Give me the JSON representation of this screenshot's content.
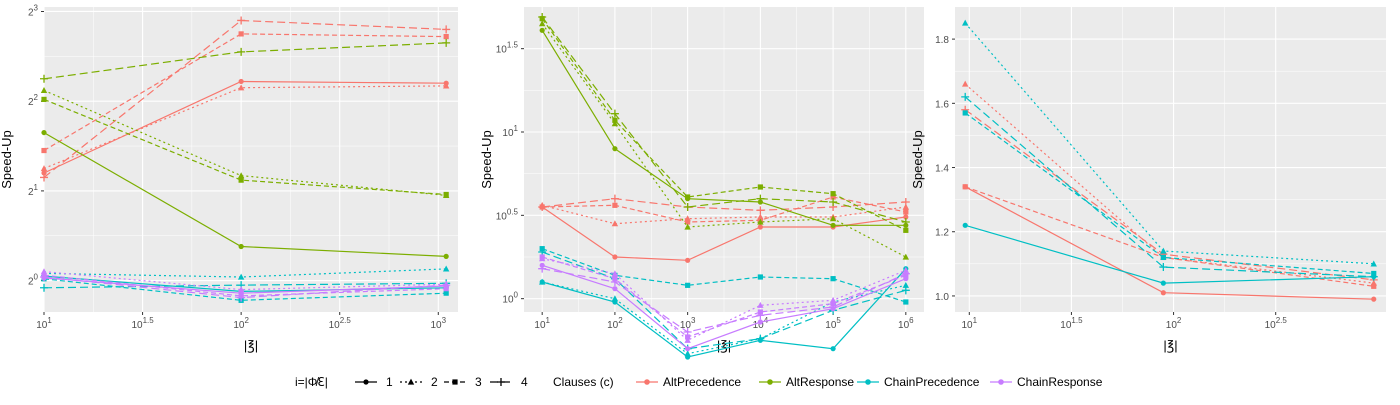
{
  "legend": {
    "shape_title": "i=|Φ̸ℇ|",
    "shape_items": [
      "1",
      "2",
      "3",
      "4"
    ],
    "color_title": "Clauses (c)",
    "color_items": [
      "AltPrecedence",
      "AltResponse",
      "ChainPrecedence",
      "ChainResponse"
    ]
  },
  "colors": {
    "AltPrecedence": "#F8766D",
    "AltResponse": "#7CAE00",
    "ChainPrecedence": "#00BFC4",
    "ChainResponse": "#C77CFF",
    "panel_bg": "#EBEBEB",
    "grid": "#FFFFFF"
  },
  "chart_data": [
    {
      "type": "line",
      "xlabel": "|℥|",
      "ylabel": "Speed-Up",
      "xscale": "log10",
      "yscale": "log2",
      "xlim": [
        1,
        3.1
      ],
      "ylim": [
        -0.35,
        3.05
      ],
      "xticks": [
        1,
        1.5,
        2,
        2.5,
        3
      ],
      "xtick_labels": [
        "10^1",
        "10^1.5",
        "10^2",
        "10^2.5",
        "10^3"
      ],
      "yticks": [
        0,
        1,
        2,
        3
      ],
      "ytick_labels": [
        "2^0",
        "2^1",
        "2^2",
        "2^3"
      ],
      "grid": true,
      "x": [
        1,
        2,
        3.04
      ],
      "series": [
        {
          "clause": "AltPrecedence",
          "i": "1",
          "values": [
            1.2,
            2.22,
            2.2
          ]
        },
        {
          "clause": "AltPrecedence",
          "i": "2",
          "values": [
            1.25,
            2.15,
            2.17
          ]
        },
        {
          "clause": "AltPrecedence",
          "i": "3",
          "values": [
            1.45,
            2.75,
            2.72
          ]
        },
        {
          "clause": "AltPrecedence",
          "i": "4",
          "values": [
            1.15,
            2.9,
            2.8
          ]
        },
        {
          "clause": "AltResponse",
          "i": "1",
          "values": [
            1.65,
            0.38,
            0.27
          ]
        },
        {
          "clause": "AltResponse",
          "i": "2",
          "values": [
            2.12,
            1.17,
            0.95
          ]
        },
        {
          "clause": "AltResponse",
          "i": "3",
          "values": [
            2.02,
            1.12,
            0.96
          ]
        },
        {
          "clause": "AltResponse",
          "i": "4",
          "values": [
            2.25,
            2.55,
            2.65
          ]
        },
        {
          "clause": "ChainPrecedence",
          "i": "1",
          "values": [
            0.05,
            -0.12,
            -0.08
          ]
        },
        {
          "clause": "ChainPrecedence",
          "i": "2",
          "values": [
            0.08,
            0.04,
            0.13
          ]
        },
        {
          "clause": "ChainPrecedence",
          "i": "3",
          "values": [
            0.02,
            -0.22,
            -0.14
          ]
        },
        {
          "clause": "ChainPrecedence",
          "i": "4",
          "values": [
            -0.08,
            -0.05,
            -0.03
          ]
        },
        {
          "clause": "ChainResponse",
          "i": "1",
          "values": [
            0.03,
            -0.14,
            -0.06
          ]
        },
        {
          "clause": "ChainResponse",
          "i": "2",
          "values": [
            0.1,
            -0.1,
            -0.04
          ]
        },
        {
          "clause": "ChainResponse",
          "i": "3",
          "values": [
            0.06,
            -0.17,
            -0.09
          ]
        },
        {
          "clause": "ChainResponse",
          "i": "4",
          "values": [
            0.04,
            -0.19,
            -0.05
          ]
        }
      ]
    },
    {
      "type": "line",
      "xlabel": "|℥|",
      "ylabel": "Speed-Up",
      "xscale": "log10",
      "yscale": "log10",
      "xlim": [
        0.75,
        6.25
      ],
      "ylim": [
        -0.08,
        1.75
      ],
      "xticks": [
        1,
        2,
        3,
        4,
        5,
        6
      ],
      "xtick_labels": [
        "10^1",
        "10^2",
        "10^3",
        "10^4",
        "10^5",
        "10^6"
      ],
      "yticks": [
        0,
        0.5,
        1,
        1.5
      ],
      "ytick_labels": [
        "10^0",
        "10^0.5",
        "10^1",
        "10^1.5"
      ],
      "grid": true,
      "x": [
        1,
        2,
        3,
        4,
        5,
        6
      ],
      "series": [
        {
          "clause": "AltPrecedence",
          "i": "1",
          "values": [
            0.55,
            0.25,
            0.23,
            0.43,
            0.43,
            0.49
          ]
        },
        {
          "clause": "AltPrecedence",
          "i": "2",
          "values": [
            0.56,
            0.45,
            0.48,
            0.49,
            0.49,
            0.55
          ]
        },
        {
          "clause": "AltPrecedence",
          "i": "3",
          "values": [
            0.55,
            0.56,
            0.46,
            0.47,
            0.61,
            0.52
          ]
        },
        {
          "clause": "AltPrecedence",
          "i": "4",
          "values": [
            0.55,
            0.6,
            0.55,
            0.53,
            0.55,
            0.58
          ]
        },
        {
          "clause": "AltResponse",
          "i": "1",
          "values": [
            1.61,
            0.9,
            0.6,
            0.58,
            0.44,
            0.44
          ]
        },
        {
          "clause": "AltResponse",
          "i": "2",
          "values": [
            1.65,
            1.05,
            0.43,
            0.46,
            0.48,
            0.25
          ]
        },
        {
          "clause": "AltResponse",
          "i": "3",
          "values": [
            1.68,
            1.07,
            0.61,
            0.67,
            0.63,
            0.41
          ]
        },
        {
          "clause": "AltResponse",
          "i": "4",
          "values": [
            1.69,
            1.11,
            0.55,
            0.6,
            0.58,
            0.46
          ]
        },
        {
          "clause": "ChainPrecedence",
          "i": "1",
          "values": [
            0.1,
            -0.02,
            -0.35,
            -0.25,
            -0.3,
            0.18
          ]
        },
        {
          "clause": "ChainPrecedence",
          "i": "2",
          "values": [
            0.1,
            0.0,
            -0.33,
            -0.24,
            -0.02,
            0.08
          ]
        },
        {
          "clause": "ChainPrecedence",
          "i": "3",
          "values": [
            0.3,
            0.14,
            0.08,
            0.13,
            0.12,
            -0.02
          ]
        },
        {
          "clause": "ChainPrecedence",
          "i": "4",
          "values": [
            0.28,
            0.12,
            -0.3,
            -0.24,
            -0.07,
            0.05
          ]
        },
        {
          "clause": "ChainResponse",
          "i": "1",
          "values": [
            0.2,
            0.06,
            -0.3,
            -0.14,
            -0.06,
            0.12
          ]
        },
        {
          "clause": "ChainResponse",
          "i": "2",
          "values": [
            0.24,
            0.15,
            -0.25,
            -0.04,
            -0.01,
            0.17
          ]
        },
        {
          "clause": "ChainResponse",
          "i": "3",
          "values": [
            0.25,
            0.12,
            -0.23,
            -0.08,
            -0.03,
            0.14
          ]
        },
        {
          "clause": "ChainResponse",
          "i": "4",
          "values": [
            0.18,
            0.1,
            -0.2,
            -0.1,
            -0.05,
            0.15
          ]
        }
      ]
    },
    {
      "type": "line",
      "xlabel": "|℥|",
      "ylabel": "Speed-Up",
      "xscale": "log10",
      "yscale": "linear",
      "xlim": [
        0.93,
        3.04
      ],
      "ylim": [
        0.95,
        1.9
      ],
      "xticks": [
        1,
        1.5,
        2,
        2.5
      ],
      "xtick_labels": [
        "10^1",
        "10^1.5",
        "10^2",
        "10^2.5"
      ],
      "yticks": [
        1.0,
        1.2,
        1.4,
        1.6,
        1.8
      ],
      "ytick_labels": [
        "1.0",
        "1.2",
        "1.4",
        "1.6",
        "1.8"
      ],
      "grid": true,
      "x": [
        0.98,
        1.95,
        2.98
      ],
      "series": [
        {
          "clause": "AltPrecedence",
          "i": "1",
          "values": [
            1.34,
            1.01,
            0.99
          ]
        },
        {
          "clause": "AltPrecedence",
          "i": "2",
          "values": [
            1.66,
            1.12,
            1.04
          ]
        },
        {
          "clause": "AltPrecedence",
          "i": "3",
          "values": [
            1.34,
            1.12,
            1.03
          ]
        },
        {
          "clause": "AltPrecedence",
          "i": "4",
          "values": [
            1.58,
            1.13,
            1.05
          ]
        },
        {
          "clause": "ChainPrecedence",
          "i": "1",
          "values": [
            1.22,
            1.04,
            1.06
          ]
        },
        {
          "clause": "ChainPrecedence",
          "i": "2",
          "values": [
            1.85,
            1.14,
            1.1
          ]
        },
        {
          "clause": "ChainPrecedence",
          "i": "3",
          "values": [
            1.57,
            1.12,
            1.07
          ]
        },
        {
          "clause": "ChainPrecedence",
          "i": "4",
          "values": [
            1.62,
            1.09,
            1.06
          ]
        }
      ]
    }
  ]
}
